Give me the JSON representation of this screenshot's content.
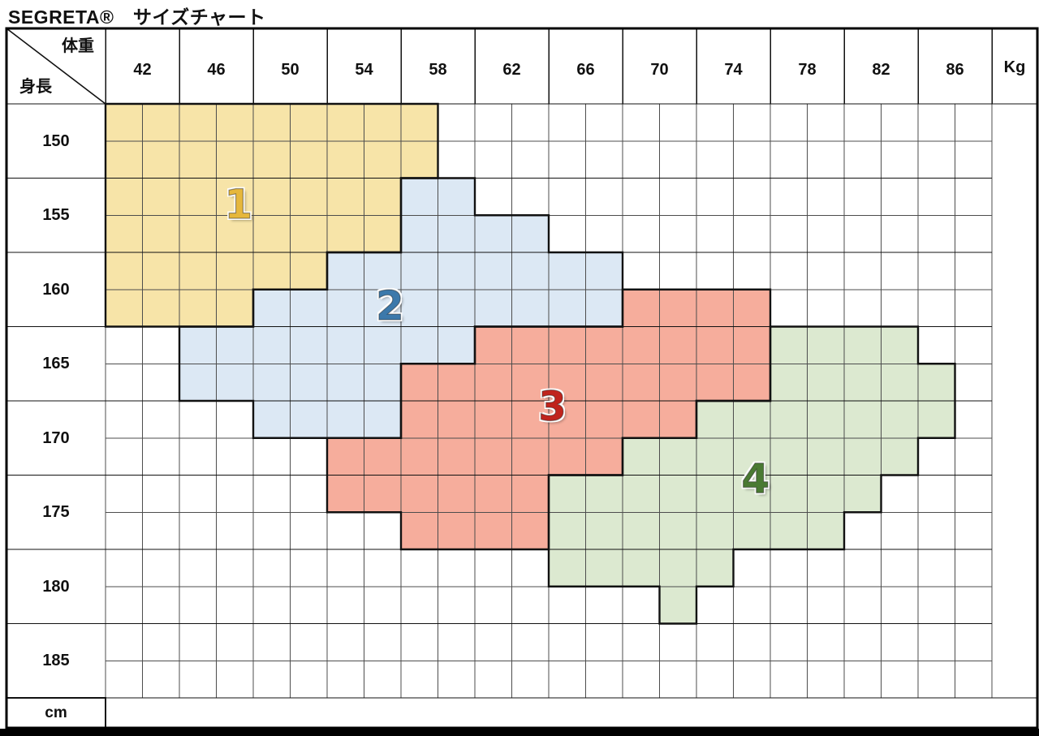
{
  "title": "SEGRETA®　サイズチャート",
  "table": {
    "corner": {
      "weight_header": "体重",
      "height_header": "身長"
    },
    "weight_unit_label": "Kg",
    "height_unit_label": "cm",
    "weight_labels": [
      "42",
      "46",
      "50",
      "54",
      "58",
      "62",
      "66",
      "70",
      "74",
      "78",
      "82",
      "86"
    ],
    "height_labels": [
      "150",
      "155",
      "160",
      "165",
      "170",
      "175",
      "180",
      "185"
    ]
  },
  "colors": {
    "grid_line": "#4d4d4d",
    "structure_line": "#111111",
    "outer_border": "#000000",
    "text": "#111111"
  },
  "chart_data": {
    "type": "heatmap",
    "title": "SEGRETA® サイズチャート (size chart: size regions 1-4 over weight × height grid)",
    "x_axis": {
      "name": "体重",
      "unit": "Kg",
      "cell_start": 40,
      "cell_step": 2,
      "cells": 24,
      "tick_labels": [
        42,
        46,
        50,
        54,
        58,
        62,
        66,
        70,
        74,
        78,
        82,
        86
      ]
    },
    "y_axis": {
      "name": "身長",
      "unit": "cm",
      "cell_start": 147.5,
      "cell_step": 2.5,
      "cells": 16,
      "tick_labels": [
        150,
        155,
        160,
        165,
        170,
        175,
        180,
        185
      ]
    },
    "grid_note": "sub-cells are 2 Kg wide × 2.5 cm tall; row 0 = 147.5-150 cm, col 0 = 40-42 Kg; region rows are [rowIndex, colStart, colEndExclusive]",
    "regions": [
      {
        "size": "1",
        "fill": "#F7E4A8",
        "glyph_color": "#E6B73C",
        "glyph_cell": [
          2.7,
          3.6
        ],
        "rows": [
          [
            0,
            0,
            9
          ],
          [
            1,
            0,
            9
          ],
          [
            2,
            0,
            8
          ],
          [
            3,
            0,
            8
          ],
          [
            4,
            0,
            6
          ],
          [
            5,
            0,
            4
          ]
        ],
        "coverage": [
          {
            "height_cm": "147.5-152.5",
            "weight_kg": "40-58"
          },
          {
            "height_cm": "152.5-157.5",
            "weight_kg": "40-56"
          },
          {
            "height_cm": "157.5-160.0",
            "weight_kg": "40-52"
          },
          {
            "height_cm": "160.0-162.5",
            "weight_kg": "40-48"
          }
        ]
      },
      {
        "size": "2",
        "fill": "#DCE8F4",
        "glyph_color": "#3C79AB",
        "glyph_cell": [
          5.45,
          7.7
        ],
        "rows": [
          [
            2,
            8,
            10
          ],
          [
            3,
            8,
            12
          ],
          [
            4,
            6,
            14
          ],
          [
            5,
            4,
            14
          ],
          [
            6,
            2,
            10
          ],
          [
            7,
            2,
            8
          ],
          [
            8,
            4,
            8
          ]
        ],
        "coverage": [
          {
            "height_cm": "152.5-155.0",
            "weight_kg": "56-60"
          },
          {
            "height_cm": "155.0-157.5",
            "weight_kg": "56-64"
          },
          {
            "height_cm": "157.5-160.0",
            "weight_kg": "52-68"
          },
          {
            "height_cm": "160.0-162.5",
            "weight_kg": "48-68"
          },
          {
            "height_cm": "162.5-165.0",
            "weight_kg": "44-60"
          },
          {
            "height_cm": "165.0-167.5",
            "weight_kg": "44-56"
          },
          {
            "height_cm": "167.5-170.0",
            "weight_kg": "48-56"
          }
        ]
      },
      {
        "size": "3",
        "fill": "#F6AD9C",
        "glyph_color": "#C0241D",
        "glyph_cell": [
          8.15,
          12.1
        ],
        "rows": [
          [
            5,
            14,
            18
          ],
          [
            6,
            10,
            18
          ],
          [
            7,
            8,
            18
          ],
          [
            8,
            8,
            16
          ],
          [
            9,
            6,
            14
          ],
          [
            10,
            6,
            12
          ],
          [
            11,
            8,
            12
          ]
        ],
        "coverage": [
          {
            "height_cm": "160.0-162.5",
            "weight_kg": "68-76"
          },
          {
            "height_cm": "162.5-165.0",
            "weight_kg": "60-76"
          },
          {
            "height_cm": "165.0-167.5",
            "weight_kg": "56-76"
          },
          {
            "height_cm": "167.5-170.0",
            "weight_kg": "56-72"
          },
          {
            "height_cm": "170.0-172.5",
            "weight_kg": "52-68"
          },
          {
            "height_cm": "172.5-175.0",
            "weight_kg": "52-64"
          },
          {
            "height_cm": "175.0-177.5",
            "weight_kg": "56-64"
          }
        ]
      },
      {
        "size": "4",
        "fill": "#DCE9D0",
        "glyph_color": "#4A7A33",
        "glyph_cell": [
          10.1,
          17.6
        ],
        "rows": [
          [
            6,
            18,
            22
          ],
          [
            7,
            18,
            23
          ],
          [
            8,
            16,
            23
          ],
          [
            9,
            14,
            22
          ],
          [
            10,
            12,
            21
          ],
          [
            11,
            12,
            20
          ],
          [
            12,
            12,
            17
          ],
          [
            13,
            15,
            16
          ]
        ],
        "coverage": [
          {
            "height_cm": "162.5-165.0",
            "weight_kg": "76-84"
          },
          {
            "height_cm": "165.0-167.5",
            "weight_kg": "76-86"
          },
          {
            "height_cm": "167.5-170.0",
            "weight_kg": "72-86"
          },
          {
            "height_cm": "170.0-172.5",
            "weight_kg": "68-84"
          },
          {
            "height_cm": "172.5-175.0",
            "weight_kg": "64-82"
          },
          {
            "height_cm": "175.0-177.5",
            "weight_kg": "64-80"
          },
          {
            "height_cm": "177.5-180.0",
            "weight_kg": "64-74"
          },
          {
            "height_cm": "180.0-182.5",
            "weight_kg": "70-72"
          }
        ]
      }
    ]
  }
}
